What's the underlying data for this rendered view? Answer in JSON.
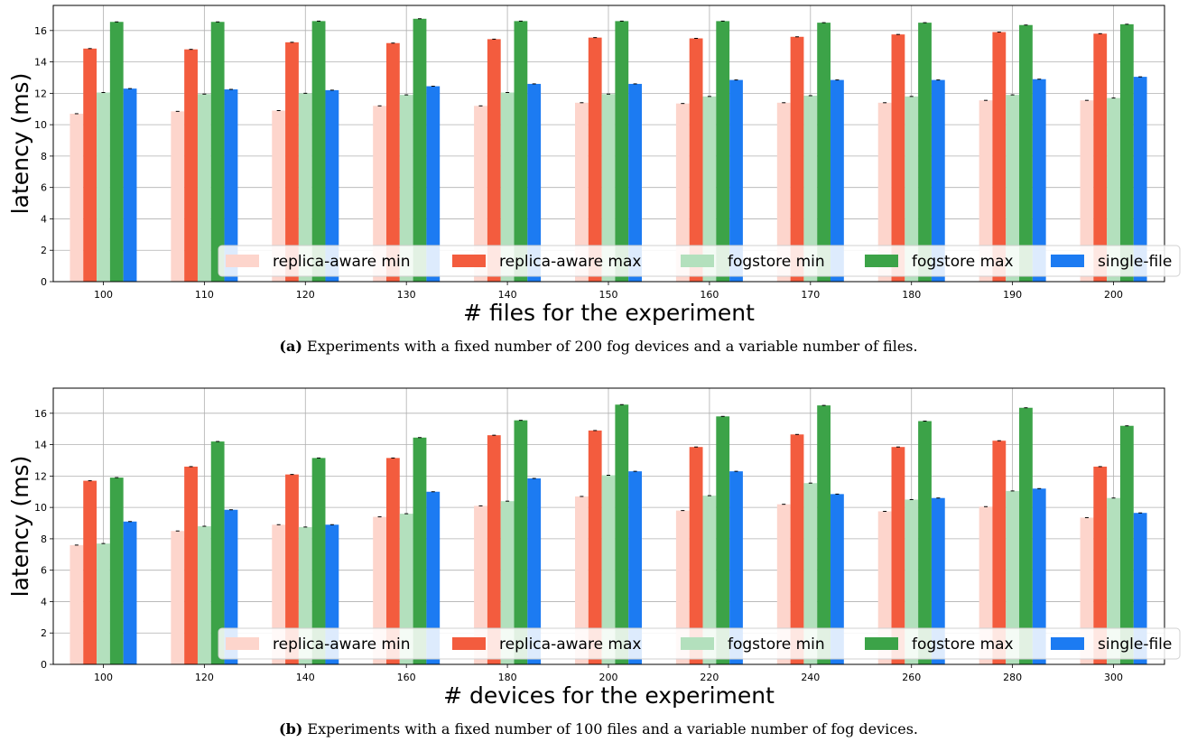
{
  "colors": {
    "replica_aware_min": "#fdd5cc",
    "replica_aware_max": "#f35c3e",
    "fogstore_min": "#b3e0bd",
    "fogstore_max": "#3ca348",
    "single_file": "#1c7bf2"
  },
  "legend": [
    "replica-aware min",
    "replica-aware max",
    "fogstore min",
    "fogstore max",
    "single-file"
  ],
  "chart_data": [
    {
      "type": "bar",
      "xlabel": "# files for the experiment",
      "ylabel": "latency (ms)",
      "ylim": [
        0,
        17.6
      ],
      "yticks": [
        0,
        2,
        4,
        6,
        8,
        10,
        12,
        14,
        16
      ],
      "grid": true,
      "legend_position": "lower-right",
      "categories": [
        "100",
        "110",
        "120",
        "130",
        "140",
        "150",
        "160",
        "170",
        "180",
        "190",
        "200"
      ],
      "series": [
        {
          "name": "replica-aware min",
          "values": [
            10.7,
            10.85,
            10.9,
            11.2,
            11.2,
            11.4,
            11.35,
            11.4,
            11.4,
            11.55,
            11.55
          ]
        },
        {
          "name": "replica-aware max",
          "values": [
            14.85,
            14.8,
            15.25,
            15.2,
            15.45,
            15.55,
            15.5,
            15.6,
            15.75,
            15.9,
            15.8
          ]
        },
        {
          "name": "fogstore min",
          "values": [
            12.05,
            11.95,
            12.0,
            11.9,
            12.05,
            11.95,
            11.8,
            11.85,
            11.8,
            11.9,
            11.7
          ]
        },
        {
          "name": "fogstore max",
          "values": [
            16.55,
            16.55,
            16.6,
            16.75,
            16.6,
            16.6,
            16.6,
            16.5,
            16.5,
            16.35,
            16.4
          ]
        },
        {
          "name": "single-file",
          "values": [
            12.3,
            12.25,
            12.2,
            12.45,
            12.6,
            12.6,
            12.85,
            12.85,
            12.85,
            12.9,
            13.05
          ]
        }
      ],
      "caption_label": "(a)",
      "caption_text": " Experiments with a fixed number of 200 fog devices and a variable number of files."
    },
    {
      "type": "bar",
      "xlabel": "# devices for the experiment",
      "ylabel": "latency (ms)",
      "ylim": [
        0,
        17.6
      ],
      "yticks": [
        0,
        2,
        4,
        6,
        8,
        10,
        12,
        14,
        16
      ],
      "grid": true,
      "legend_position": "lower-right",
      "categories": [
        "100",
        "120",
        "140",
        "160",
        "180",
        "200",
        "220",
        "240",
        "260",
        "280",
        "300"
      ],
      "series": [
        {
          "name": "replica-aware min",
          "values": [
            7.6,
            8.5,
            8.9,
            9.4,
            10.1,
            10.7,
            9.8,
            10.2,
            9.75,
            10.05,
            9.35
          ]
        },
        {
          "name": "replica-aware max",
          "values": [
            11.7,
            12.6,
            12.1,
            13.15,
            14.6,
            14.9,
            13.85,
            14.65,
            13.85,
            14.25,
            12.6
          ]
        },
        {
          "name": "fogstore min",
          "values": [
            7.7,
            8.8,
            8.75,
            9.6,
            10.4,
            12.05,
            10.75,
            11.55,
            10.5,
            11.05,
            10.6
          ]
        },
        {
          "name": "fogstore max",
          "values": [
            11.9,
            14.2,
            13.15,
            14.45,
            15.55,
            16.55,
            15.8,
            16.5,
            15.5,
            16.35,
            15.2
          ]
        },
        {
          "name": "single-file",
          "values": [
            9.1,
            9.85,
            8.9,
            11.0,
            11.85,
            12.3,
            12.3,
            10.85,
            10.6,
            11.2,
            9.65
          ]
        }
      ],
      "caption_label": "(b)",
      "caption_text": " Experiments with a fixed number of 100 files and a variable number of fog devices."
    }
  ]
}
